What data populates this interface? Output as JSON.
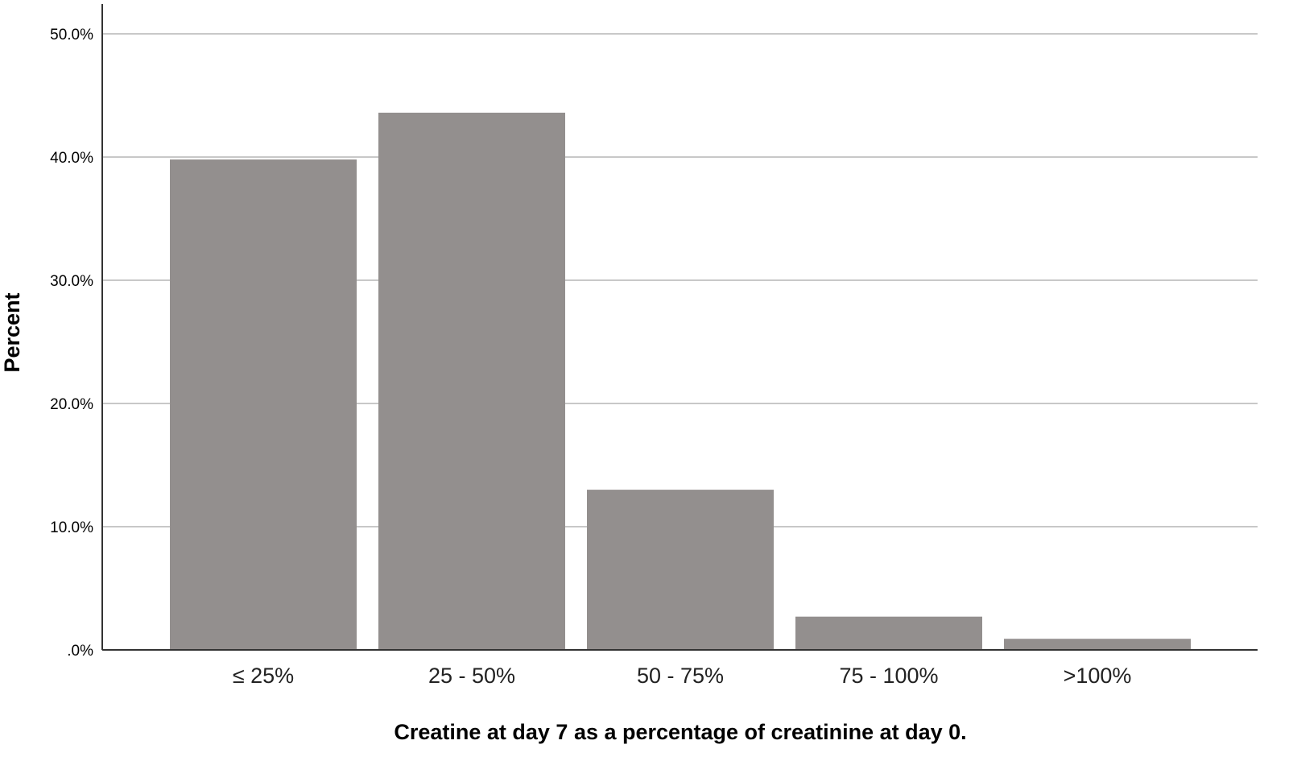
{
  "chart_data": {
    "type": "bar",
    "categories": [
      "≤ 25%",
      "25 - 50%",
      "50 - 75%",
      "75 - 100%",
      ">100%"
    ],
    "values": [
      39.8,
      43.6,
      13.0,
      2.7,
      0.9
    ],
    "title": "",
    "xlabel": "Creatine  at day 7 as a percentage of creatinine at day 0.",
    "ylabel": "Percent",
    "ylim": [
      0,
      52
    ],
    "yticks": [
      0,
      10,
      20,
      30,
      40,
      50
    ],
    "ytick_labels": [
      ".0%",
      "10.0%",
      "20.0%",
      "30.0%",
      "40.0%",
      "50.0%"
    ],
    "grid": true,
    "legend": "none",
    "bar_color": "#938f8e",
    "grid_color": "#c8c8c8",
    "axis_color": "#333333"
  }
}
